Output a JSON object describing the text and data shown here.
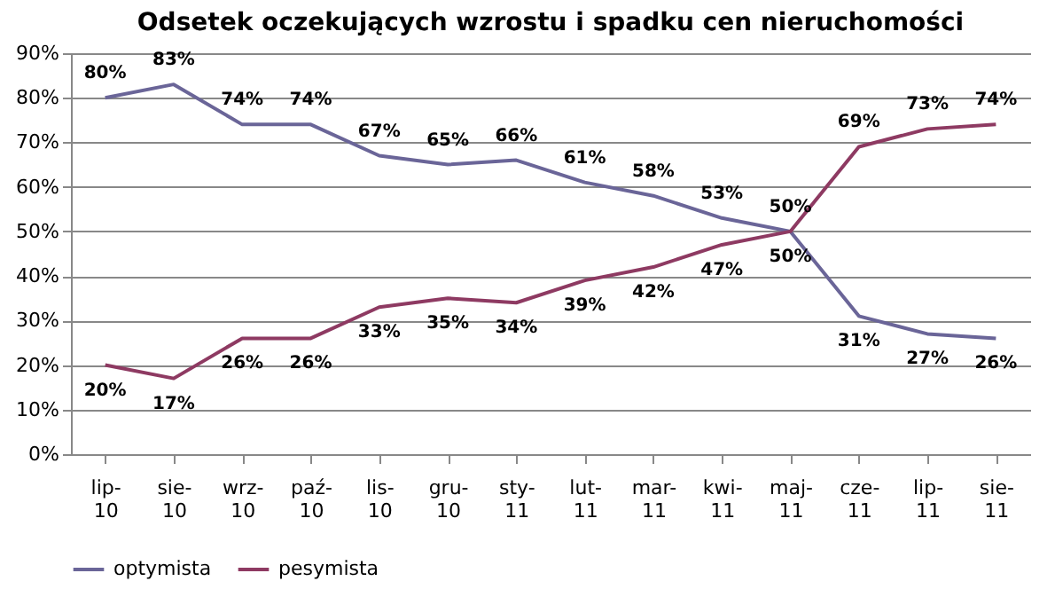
{
  "chart_data": {
    "type": "line",
    "title": "Odsetek oczekujących wzrostu i spadku cen nieruchomości",
    "categories": [
      "lip-10",
      "sie-10",
      "wrz-10",
      "paź-10",
      "lis-10",
      "gru-10",
      "sty-11",
      "lut-11",
      "mar-11",
      "kwi-11",
      "maj-11",
      "cze-11",
      "lip-11",
      "sie-11"
    ],
    "series": [
      {
        "name": "optymista",
        "color": "#6a6598",
        "values": [
          80,
          83,
          74,
          74,
          67,
          65,
          66,
          61,
          58,
          53,
          50,
          31,
          27,
          26
        ],
        "value_labels": [
          "80%",
          "83%",
          "74%",
          "74%",
          "67%",
          "65%",
          "66%",
          "61%",
          "58%",
          "53%",
          "50%",
          "31%",
          "27%",
          "26%"
        ]
      },
      {
        "name": "pesymista",
        "color": "#8e3a62",
        "values": [
          20,
          17,
          26,
          26,
          33,
          35,
          34,
          39,
          42,
          47,
          50,
          69,
          73,
          74
        ],
        "value_labels": [
          "20%",
          "17%",
          "26%",
          "26%",
          "33%",
          "35%",
          "34%",
          "39%",
          "42%",
          "47%",
          "50%",
          "69%",
          "73%",
          "74%"
        ]
      }
    ],
    "ylim": [
      0,
      90
    ],
    "yticks": [
      {
        "value": 0,
        "label": "0%"
      },
      {
        "value": 10,
        "label": "10%"
      },
      {
        "value": 20,
        "label": "20%"
      },
      {
        "value": 30,
        "label": "30%"
      },
      {
        "value": 40,
        "label": "40%"
      },
      {
        "value": 50,
        "label": "50%"
      },
      {
        "value": 60,
        "label": "60%"
      },
      {
        "value": 70,
        "label": "70%"
      },
      {
        "value": 80,
        "label": "80%"
      },
      {
        "value": 90,
        "label": "90%"
      }
    ],
    "grid": "y",
    "legend": "bottom",
    "marker": "none",
    "line_style": "solid"
  }
}
